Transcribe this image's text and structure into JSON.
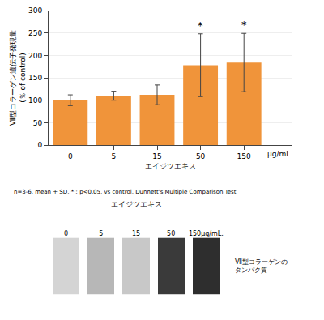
{
  "chart_data": [
    {
      "type": "bar",
      "categories": [
        "0",
        "5",
        "15",
        "50",
        "150"
      ],
      "values": [
        100,
        110,
        112,
        178,
        184
      ],
      "errors": [
        12,
        10,
        22,
        70,
        65
      ],
      "color": "#F0943A",
      "xlabel": "エイジツエキス",
      "ylabel": "Ⅶ型コラーゲン遺伝子発現量\n(％ of control)",
      "ylim": [
        0,
        300
      ],
      "yticks": [
        0,
        50,
        100,
        150,
        200,
        250,
        300
      ],
      "annotations": [
        {
          "text": "*",
          "category": "50"
        },
        {
          "text": "*",
          "category": "150"
        }
      ],
      "x_unit": "μg/mL",
      "footnote": "n=3-6, mean + SD, *：p<0.05, vs control, Dunnett's Multiple Comparison Test"
    },
    {
      "type": "heatmap",
      "title": "エイジツエキス",
      "categories": [
        "0",
        "5",
        "15",
        "50",
        "150μg/mL."
      ],
      "values": [
        0.45,
        0.52,
        0.48,
        0.82,
        0.85
      ],
      "ylabel": "Ⅶ型コラーゲンの\nタンパク質"
    }
  ]
}
